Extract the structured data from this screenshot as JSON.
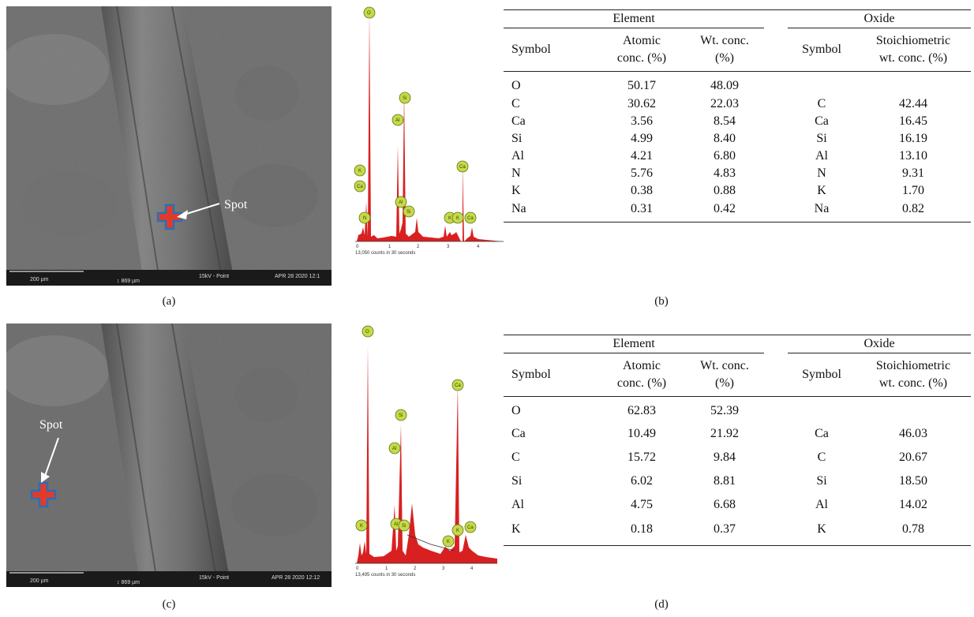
{
  "panels": {
    "a": {
      "label": "(a)"
    },
    "b": {
      "label": "(b)"
    },
    "c": {
      "label": "(c)"
    },
    "d": {
      "label": "(d)"
    }
  },
  "sem_a": {
    "spot_label": "Spot",
    "scalebar": "200 µm",
    "field_width": "↕ 869 µm",
    "beam": "15kV - Point",
    "date": "APR 28 2020 12:1"
  },
  "sem_c": {
    "spot_label": "Spot",
    "scalebar": "200 µm",
    "field_width": "↕ 869 µm",
    "beam": "15kV - Point",
    "date": "APR 28 2020 12:12"
  },
  "spectrum_b": {
    "caption": "13,050 counts in 30 seconds",
    "ticks": [
      "0",
      "1",
      "2",
      "3",
      "4"
    ],
    "peaks": [
      "O",
      "Si",
      "Al",
      "K",
      "Ca",
      "Ca",
      "N",
      "Al",
      "Si",
      "K",
      "K",
      "Ca"
    ]
  },
  "spectrum_d": {
    "caption": "13,495 counts in 30 seconds",
    "ticks": [
      "0",
      "1",
      "2",
      "3",
      "4"
    ],
    "peaks": [
      "O",
      "Ca",
      "Si",
      "Al",
      "K",
      "Al",
      "Si",
      "K",
      "K",
      "Ca"
    ]
  },
  "table_b": {
    "group_element": "Element",
    "group_oxide": "Oxide",
    "h_symbol": "Symbol",
    "h_atomic": [
      "Atomic",
      "conc. (%)"
    ],
    "h_wt": [
      "Wt. conc.",
      "(%)"
    ],
    "h_symbol2": "Symbol",
    "h_stoich": [
      "Stoichiometric",
      "wt. conc. (%)"
    ],
    "rows": [
      [
        "O",
        "50.17",
        "48.09",
        "",
        ""
      ],
      [
        "C",
        "30.62",
        "22.03",
        "C",
        "42.44"
      ],
      [
        "Ca",
        "3.56",
        "8.54",
        "Ca",
        "16.45"
      ],
      [
        "Si",
        "4.99",
        "8.40",
        "Si",
        "16.19"
      ],
      [
        "Al",
        "4.21",
        "6.80",
        "Al",
        "13.10"
      ],
      [
        "N",
        "5.76",
        "4.83",
        "N",
        "9.31"
      ],
      [
        "K",
        "0.38",
        "0.88",
        "K",
        "1.70"
      ],
      [
        "Na",
        "0.31",
        "0.42",
        "Na",
        "0.82"
      ]
    ]
  },
  "table_d": {
    "group_element": "Element",
    "group_oxide": "Oxide",
    "h_symbol": "Symbol",
    "h_atomic": [
      "Atomic",
      "conc. (%)"
    ],
    "h_wt": [
      "Wt. conc.",
      "(%)"
    ],
    "h_symbol2": "Symbol",
    "h_stoich": [
      "Stoichiometric",
      "wt. conc. (%)"
    ],
    "rows": [
      [
        "O",
        "62.83",
        "52.39",
        "",
        ""
      ],
      [
        "Ca",
        "10.49",
        "21.92",
        "Ca",
        "46.03"
      ],
      [
        "C",
        "15.72",
        "9.84",
        "C",
        "20.67"
      ],
      [
        "Si",
        "6.02",
        "8.81",
        "Si",
        "18.50"
      ],
      [
        "Al",
        "4.75",
        "6.68",
        "Al",
        "14.02"
      ],
      [
        "K",
        "0.18",
        "0.37",
        "K",
        "0.78"
      ]
    ]
  },
  "colors": {
    "marker_fill": "#e23a2a",
    "marker_outline": "#2a6fb5",
    "spectrum_fill": "#d92020",
    "peak_label_fill": "#c8d84a"
  }
}
